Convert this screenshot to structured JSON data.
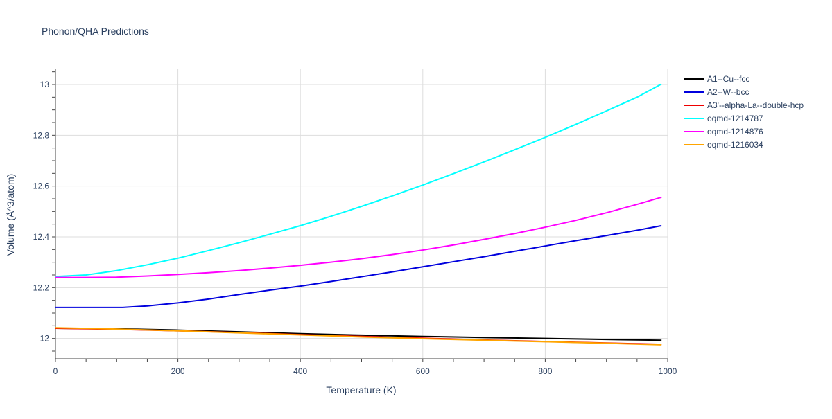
{
  "chart_data": {
    "type": "line",
    "title": "Phonon/QHA Predictions",
    "xlabel": "Temperature (K)",
    "ylabel": "Volume (Å^3/atom)",
    "xlim": [
      0,
      1000
    ],
    "ylim": [
      11.92,
      13.06
    ],
    "xticks": [
      0,
      200,
      400,
      600,
      800,
      1000
    ],
    "yticks": [
      12,
      12.2,
      12.4,
      12.6,
      12.8,
      13
    ],
    "grid": true,
    "legend_position": "top-right outside",
    "series": [
      {
        "name": "A1--Cu--fcc",
        "color": "#000000",
        "x": [
          0,
          100,
          200,
          300,
          400,
          500,
          600,
          700,
          800,
          900,
          990
        ],
        "y": [
          12.04,
          12.038,
          12.033,
          12.026,
          12.019,
          12.013,
          12.008,
          12.004,
          12.0,
          11.996,
          11.993
        ]
      },
      {
        "name": "A2--W--bcc",
        "color": "#0000dd",
        "x": [
          0,
          50,
          100,
          110,
          150,
          200,
          250,
          300,
          350,
          400,
          450,
          500,
          550,
          600,
          650,
          700,
          750,
          800,
          850,
          900,
          950,
          990
        ],
        "y": [
          12.122,
          12.122,
          12.122,
          12.122,
          12.128,
          12.14,
          12.155,
          12.173,
          12.19,
          12.206,
          12.224,
          12.243,
          12.262,
          12.282,
          12.302,
          12.322,
          12.343,
          12.364,
          12.385,
          12.405,
          12.426,
          12.444
        ]
      },
      {
        "name": "A3'--alpha-La--double-hcp",
        "color": "#ee0000",
        "x": [
          0,
          100,
          200,
          300,
          400,
          500,
          600,
          700,
          800,
          900,
          990
        ],
        "y": [
          12.04,
          12.036,
          12.03,
          12.023,
          12.015,
          12.008,
          12.001,
          11.994,
          11.988,
          11.982,
          11.977
        ]
      },
      {
        "name": "oqmd-1214787",
        "color": "#00ffff",
        "x": [
          0,
          50,
          100,
          150,
          200,
          250,
          300,
          350,
          400,
          450,
          500,
          550,
          600,
          650,
          700,
          750,
          800,
          850,
          900,
          950,
          990
        ],
        "y": [
          12.244,
          12.25,
          12.267,
          12.29,
          12.316,
          12.346,
          12.377,
          12.41,
          12.444,
          12.481,
          12.52,
          12.561,
          12.604,
          12.649,
          12.695,
          12.743,
          12.792,
          12.843,
          12.896,
          12.95,
          13.002
        ]
      },
      {
        "name": "oqmd-1214876",
        "color": "#ff00ff",
        "x": [
          0,
          50,
          100,
          150,
          200,
          250,
          300,
          350,
          400,
          450,
          500,
          550,
          600,
          650,
          700,
          750,
          800,
          850,
          900,
          950,
          990
        ],
        "y": [
          12.24,
          12.24,
          12.241,
          12.246,
          12.252,
          12.259,
          12.267,
          12.277,
          12.288,
          12.3,
          12.314,
          12.33,
          12.348,
          12.368,
          12.39,
          12.413,
          12.438,
          12.465,
          12.495,
          12.528,
          12.556
        ]
      },
      {
        "name": "oqmd-1216034",
        "color": "#ffa500",
        "x": [
          0,
          100,
          200,
          300,
          400,
          500,
          600,
          700,
          800,
          900,
          990
        ],
        "y": [
          12.042,
          12.037,
          12.03,
          12.022,
          12.014,
          12.006,
          11.999,
          11.993,
          11.987,
          11.981,
          11.975
        ]
      }
    ]
  }
}
